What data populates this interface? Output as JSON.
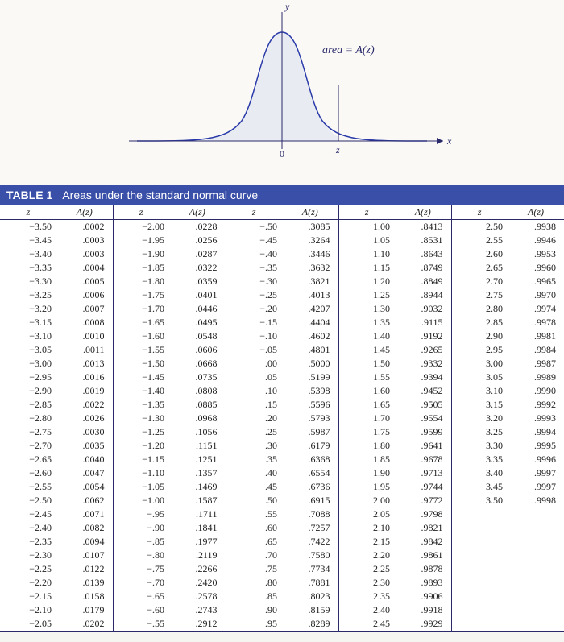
{
  "figure": {
    "y_label": "y",
    "x_label": "x",
    "z_label": "z",
    "origin_label": "0",
    "area_label": "area = A(z)",
    "curve_color": "#2a3aa8",
    "fill_color": "#e8ecf2",
    "axis_color": "#2a2a6a",
    "background_color": "#faf9f6"
  },
  "table": {
    "title_left": "TABLE 1",
    "title_right": "Areas under the standard normal curve",
    "header_bg": "#3a4fa8",
    "header_fg": "#ffffff",
    "border_color": "#2a2a6a",
    "col_header_z": "z",
    "col_header_A": "A(z)",
    "columns": [
      {
        "rows": [
          {
            "z": "−3.50",
            "a": ".0002"
          },
          {
            "z": "−3.45",
            "a": ".0003"
          },
          {
            "z": "−3.40",
            "a": ".0003"
          },
          {
            "z": "−3.35",
            "a": ".0004"
          },
          {
            "z": "−3.30",
            "a": ".0005"
          },
          {
            "z": "−3.25",
            "a": ".0006"
          },
          {
            "z": "−3.20",
            "a": ".0007"
          },
          {
            "z": "−3.15",
            "a": ".0008"
          },
          {
            "z": "−3.10",
            "a": ".0010"
          },
          {
            "z": "−3.05",
            "a": ".0011"
          },
          {
            "z": "−3.00",
            "a": ".0013"
          },
          {
            "z": "−2.95",
            "a": ".0016"
          },
          {
            "z": "−2.90",
            "a": ".0019"
          },
          {
            "z": "−2.85",
            "a": ".0022"
          },
          {
            "z": "−2.80",
            "a": ".0026"
          },
          {
            "z": "−2.75",
            "a": ".0030"
          },
          {
            "z": "−2.70",
            "a": ".0035"
          },
          {
            "z": "−2.65",
            "a": ".0040"
          },
          {
            "z": "−2.60",
            "a": ".0047"
          },
          {
            "z": "−2.55",
            "a": ".0054"
          },
          {
            "z": "−2.50",
            "a": ".0062"
          },
          {
            "z": "−2.45",
            "a": ".0071"
          },
          {
            "z": "−2.40",
            "a": ".0082"
          },
          {
            "z": "−2.35",
            "a": ".0094"
          },
          {
            "z": "−2.30",
            "a": ".0107"
          },
          {
            "z": "−2.25",
            "a": ".0122"
          },
          {
            "z": "−2.20",
            "a": ".0139"
          },
          {
            "z": "−2.15",
            "a": ".0158"
          },
          {
            "z": "−2.10",
            "a": ".0179"
          },
          {
            "z": "−2.05",
            "a": ".0202"
          }
        ]
      },
      {
        "rows": [
          {
            "z": "−2.00",
            "a": ".0228"
          },
          {
            "z": "−1.95",
            "a": ".0256"
          },
          {
            "z": "−1.90",
            "a": ".0287"
          },
          {
            "z": "−1.85",
            "a": ".0322"
          },
          {
            "z": "−1.80",
            "a": ".0359"
          },
          {
            "z": "−1.75",
            "a": ".0401"
          },
          {
            "z": "−1.70",
            "a": ".0446"
          },
          {
            "z": "−1.65",
            "a": ".0495"
          },
          {
            "z": "−1.60",
            "a": ".0548"
          },
          {
            "z": "−1.55",
            "a": ".0606"
          },
          {
            "z": "−1.50",
            "a": ".0668"
          },
          {
            "z": "−1.45",
            "a": ".0735"
          },
          {
            "z": "−1.40",
            "a": ".0808"
          },
          {
            "z": "−1.35",
            "a": ".0885"
          },
          {
            "z": "−1.30",
            "a": ".0968"
          },
          {
            "z": "−1.25",
            "a": ".1056"
          },
          {
            "z": "−1.20",
            "a": ".1151"
          },
          {
            "z": "−1.15",
            "a": ".1251"
          },
          {
            "z": "−1.10",
            "a": ".1357"
          },
          {
            "z": "−1.05",
            "a": ".1469"
          },
          {
            "z": "−1.00",
            "a": ".1587"
          },
          {
            "z": "−.95",
            "a": ".1711"
          },
          {
            "z": "−.90",
            "a": ".1841"
          },
          {
            "z": "−.85",
            "a": ".1977"
          },
          {
            "z": "−.80",
            "a": ".2119"
          },
          {
            "z": "−.75",
            "a": ".2266"
          },
          {
            "z": "−.70",
            "a": ".2420"
          },
          {
            "z": "−.65",
            "a": ".2578"
          },
          {
            "z": "−.60",
            "a": ".2743"
          },
          {
            "z": "−.55",
            "a": ".2912"
          }
        ]
      },
      {
        "rows": [
          {
            "z": "−.50",
            "a": ".3085"
          },
          {
            "z": "−.45",
            "a": ".3264"
          },
          {
            "z": "−.40",
            "a": ".3446"
          },
          {
            "z": "−.35",
            "a": ".3632"
          },
          {
            "z": "−.30",
            "a": ".3821"
          },
          {
            "z": "−.25",
            "a": ".4013"
          },
          {
            "z": "−.20",
            "a": ".4207"
          },
          {
            "z": "−.15",
            "a": ".4404"
          },
          {
            "z": "−.10",
            "a": ".4602"
          },
          {
            "z": "−.05",
            "a": ".4801"
          },
          {
            "z": ".00",
            "a": ".5000"
          },
          {
            "z": ".05",
            "a": ".5199"
          },
          {
            "z": ".10",
            "a": ".5398"
          },
          {
            "z": ".15",
            "a": ".5596"
          },
          {
            "z": ".20",
            "a": ".5793"
          },
          {
            "z": ".25",
            "a": ".5987"
          },
          {
            "z": ".30",
            "a": ".6179"
          },
          {
            "z": ".35",
            "a": ".6368"
          },
          {
            "z": ".40",
            "a": ".6554"
          },
          {
            "z": ".45",
            "a": ".6736"
          },
          {
            "z": ".50",
            "a": ".6915"
          },
          {
            "z": ".55",
            "a": ".7088"
          },
          {
            "z": ".60",
            "a": ".7257"
          },
          {
            "z": ".65",
            "a": ".7422"
          },
          {
            "z": ".70",
            "a": ".7580"
          },
          {
            "z": ".75",
            "a": ".7734"
          },
          {
            "z": ".80",
            "a": ".7881"
          },
          {
            "z": ".85",
            "a": ".8023"
          },
          {
            "z": ".90",
            "a": ".8159"
          },
          {
            "z": ".95",
            "a": ".8289"
          }
        ]
      },
      {
        "rows": [
          {
            "z": "1.00",
            "a": ".8413"
          },
          {
            "z": "1.05",
            "a": ".8531"
          },
          {
            "z": "1.10",
            "a": ".8643"
          },
          {
            "z": "1.15",
            "a": ".8749"
          },
          {
            "z": "1.20",
            "a": ".8849"
          },
          {
            "z": "1.25",
            "a": ".8944"
          },
          {
            "z": "1.30",
            "a": ".9032"
          },
          {
            "z": "1.35",
            "a": ".9115"
          },
          {
            "z": "1.40",
            "a": ".9192"
          },
          {
            "z": "1.45",
            "a": ".9265"
          },
          {
            "z": "1.50",
            "a": ".9332"
          },
          {
            "z": "1.55",
            "a": ".9394"
          },
          {
            "z": "1.60",
            "a": ".9452"
          },
          {
            "z": "1.65",
            "a": ".9505"
          },
          {
            "z": "1.70",
            "a": ".9554"
          },
          {
            "z": "1.75",
            "a": ".9599"
          },
          {
            "z": "1.80",
            "a": ".9641"
          },
          {
            "z": "1.85",
            "a": ".9678"
          },
          {
            "z": "1.90",
            "a": ".9713"
          },
          {
            "z": "1.95",
            "a": ".9744"
          },
          {
            "z": "2.00",
            "a": ".9772"
          },
          {
            "z": "2.05",
            "a": ".9798"
          },
          {
            "z": "2.10",
            "a": ".9821"
          },
          {
            "z": "2.15",
            "a": ".9842"
          },
          {
            "z": "2.20",
            "a": ".9861"
          },
          {
            "z": "2.25",
            "a": ".9878"
          },
          {
            "z": "2.30",
            "a": ".9893"
          },
          {
            "z": "2.35",
            "a": ".9906"
          },
          {
            "z": "2.40",
            "a": ".9918"
          },
          {
            "z": "2.45",
            "a": ".9929"
          }
        ]
      },
      {
        "rows": [
          {
            "z": "2.50",
            "a": ".9938"
          },
          {
            "z": "2.55",
            "a": ".9946"
          },
          {
            "z": "2.60",
            "a": ".9953"
          },
          {
            "z": "2.65",
            "a": ".9960"
          },
          {
            "z": "2.70",
            "a": ".9965"
          },
          {
            "z": "2.75",
            "a": ".9970"
          },
          {
            "z": "2.80",
            "a": ".9974"
          },
          {
            "z": "2.85",
            "a": ".9978"
          },
          {
            "z": "2.90",
            "a": ".9981"
          },
          {
            "z": "2.95",
            "a": ".9984"
          },
          {
            "z": "3.00",
            "a": ".9987"
          },
          {
            "z": "3.05",
            "a": ".9989"
          },
          {
            "z": "3.10",
            "a": ".9990"
          },
          {
            "z": "3.15",
            "a": ".9992"
          },
          {
            "z": "3.20",
            "a": ".9993"
          },
          {
            "z": "3.25",
            "a": ".9994"
          },
          {
            "z": "3.30",
            "a": ".9995"
          },
          {
            "z": "3.35",
            "a": ".9996"
          },
          {
            "z": "3.40",
            "a": ".9997"
          },
          {
            "z": "3.45",
            "a": ".9997"
          },
          {
            "z": "3.50",
            "a": ".9998"
          },
          {
            "z": "",
            "a": ""
          },
          {
            "z": "",
            "a": ""
          },
          {
            "z": "",
            "a": ""
          },
          {
            "z": "",
            "a": ""
          },
          {
            "z": "",
            "a": ""
          },
          {
            "z": "",
            "a": ""
          },
          {
            "z": "",
            "a": ""
          },
          {
            "z": "",
            "a": ""
          },
          {
            "z": "",
            "a": ""
          }
        ]
      }
    ]
  }
}
